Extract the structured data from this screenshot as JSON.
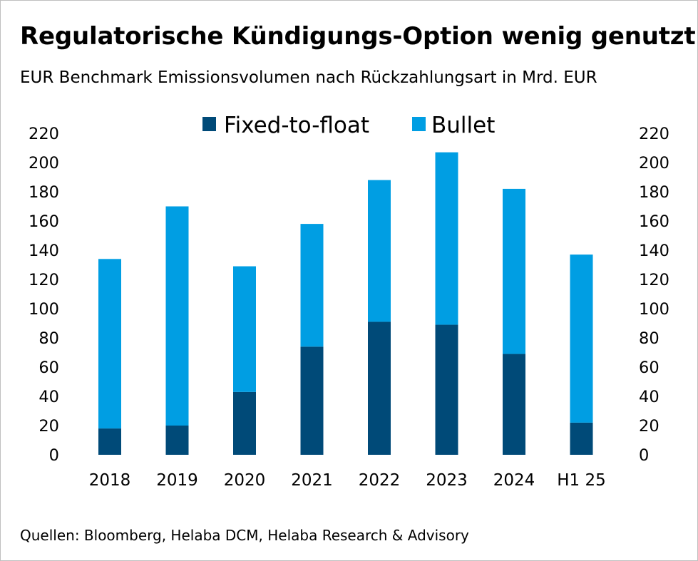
{
  "title": "Regulatorische Kündigungs-Option wenig genutzt",
  "subtitle": "EUR Benchmark Emissionsvolumen nach Rückzahlungsart in Mrd. EUR",
  "source": "Quellen: Bloomberg, Helaba DCM, Helaba Research & Advisory",
  "chart_data": {
    "type": "bar",
    "stacked": true,
    "title": "Regulatorische Kündigungs-Option wenig genutzt",
    "subtitle": "EUR Benchmark Emissionsvolumen nach Rückzahlungsart in Mrd. EUR",
    "xlabel": "",
    "ylabel": "",
    "categories": [
      "2018",
      "2019",
      "2020",
      "2021",
      "2022",
      "2023",
      "2024",
      "H1 25"
    ],
    "series": [
      {
        "name": "Fixed-to-float",
        "color": "#004a78",
        "values": [
          18,
          20,
          43,
          74,
          91,
          89,
          69,
          22
        ]
      },
      {
        "name": "Bullet",
        "color": "#009ee3",
        "values": [
          116,
          150,
          86,
          84,
          97,
          118,
          113,
          115
        ]
      }
    ],
    "ylim": [
      0,
      220
    ],
    "yticks": [
      0,
      20,
      40,
      60,
      80,
      100,
      120,
      140,
      160,
      180,
      200,
      220
    ],
    "yaxis_sides": [
      "left",
      "right"
    ],
    "grid": false,
    "legend_position": "top-center"
  }
}
